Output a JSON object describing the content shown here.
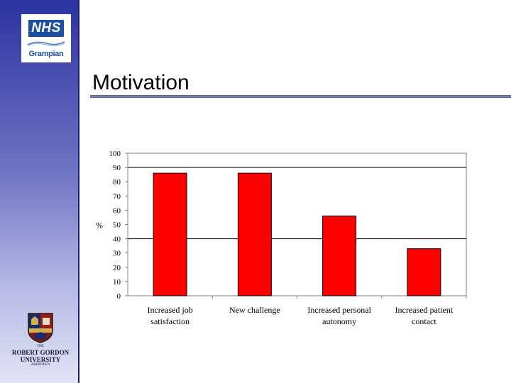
{
  "slide": {
    "title": "Motivation",
    "logo_text": "NHS",
    "logo_sub": "Grampian",
    "university": {
      "line1": "THE",
      "line2": "ROBERT GORDON",
      "line3": "UNIVERSITY",
      "line4": "ABERDEEN"
    },
    "colors": {
      "sidebar_top": "#2b33a0",
      "sidebar_bottom": "#e2e3f5",
      "nhs_blue": "#1d4fa3",
      "bar": "#ff0000"
    }
  },
  "chart_data": {
    "type": "bar",
    "categories": [
      [
        "Increased job",
        "satisfaction"
      ],
      [
        "New challenge"
      ],
      [
        "Increased personal",
        "autonomy"
      ],
      [
        "Increased patient",
        "contact"
      ]
    ],
    "values": [
      86,
      86,
      56,
      33
    ],
    "ylabel": "%",
    "ylim": [
      0,
      100
    ],
    "yticks": [
      0,
      10,
      20,
      30,
      40,
      50,
      60,
      70,
      80,
      90,
      100
    ],
    "gridlines": [
      90,
      40
    ],
    "legend": "none",
    "bar_color": "#ff0000"
  }
}
